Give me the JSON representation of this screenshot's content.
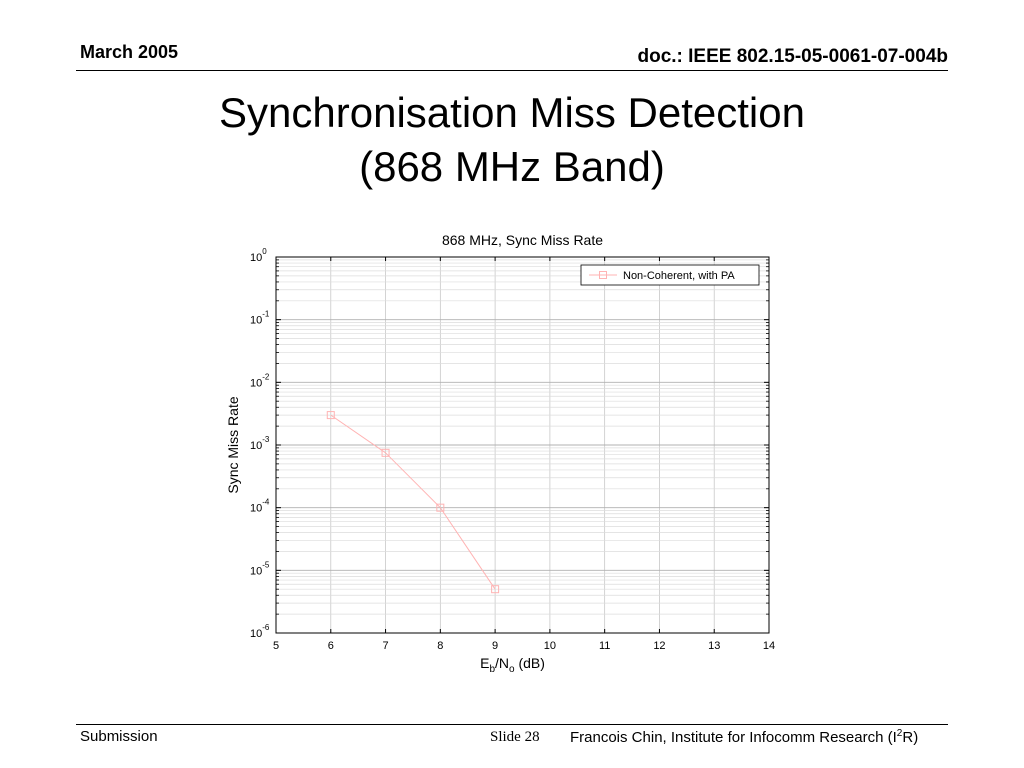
{
  "header": {
    "date": "March 2005",
    "doc": "doc.: IEEE 802.15-05-0061-07-004b"
  },
  "slide_title": {
    "line1": "Synchronisation Miss Detection",
    "line2": "(868 MHz Band)"
  },
  "chart_data": {
    "type": "line",
    "title": "868 MHz, Sync Miss Rate",
    "xlabel": "Eb/No (dB)",
    "xlabel_parts": {
      "base": "E",
      "sub1": "b",
      "mid": "/N",
      "sub2": "o",
      "tail": " (dB)"
    },
    "ylabel": "Sync Miss Rate",
    "x_scale": "linear",
    "y_scale": "log",
    "xlim": [
      5,
      14
    ],
    "ylim": [
      1e-06,
      1
    ],
    "xticks": [
      5,
      6,
      7,
      8,
      9,
      10,
      11,
      12,
      13,
      14
    ],
    "yticks": [
      {
        "base": "10",
        "exp": "0",
        "value": 1
      },
      {
        "base": "10",
        "exp": "-1",
        "value": 0.1
      },
      {
        "base": "10",
        "exp": "-2",
        "value": 0.01
      },
      {
        "base": "10",
        "exp": "-3",
        "value": 0.001
      },
      {
        "base": "10",
        "exp": "-4",
        "value": 0.0001
      },
      {
        "base": "10",
        "exp": "-5",
        "value": 1e-05
      },
      {
        "base": "10",
        "exp": "-6",
        "value": 1e-06
      }
    ],
    "grid": true,
    "legend_position": "top-right",
    "series": [
      {
        "name": "Non-Coherent, with PA",
        "color": "#ffb3b3",
        "marker": "square",
        "x": [
          6,
          7,
          8,
          9
        ],
        "y": [
          0.003,
          0.00075,
          0.0001,
          5e-06
        ]
      }
    ]
  },
  "footer": {
    "left": "Submission",
    "slide": "Slide 28",
    "right_prefix": "Francois Chin, Institute for Infocomm Research (I",
    "right_sup": "2",
    "right_suffix": "R)"
  }
}
